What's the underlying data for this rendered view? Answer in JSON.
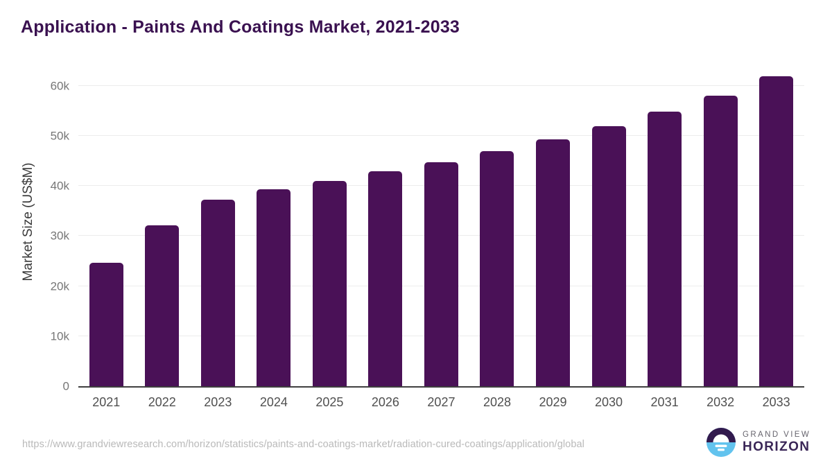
{
  "header": {
    "title": "Application - Paints And Coatings Market, 2021-2033"
  },
  "chart_data": {
    "type": "bar",
    "title": "Application - Paints And Coatings Market, 2021-2033",
    "xlabel": "",
    "ylabel": "Market Size (US$M)",
    "categories": [
      "2021",
      "2022",
      "2023",
      "2024",
      "2025",
      "2026",
      "2027",
      "2028",
      "2029",
      "2030",
      "2031",
      "2032",
      "2033"
    ],
    "values": [
      24600,
      32100,
      37200,
      39300,
      41000,
      42900,
      44800,
      47000,
      49300,
      51900,
      54800,
      58000,
      61900
    ],
    "unit": "US$M",
    "ylim": [
      0,
      64000
    ],
    "yticks": [
      {
        "value": 0,
        "label": "0"
      },
      {
        "value": 10000,
        "label": "10k"
      },
      {
        "value": 20000,
        "label": "20k"
      },
      {
        "value": 30000,
        "label": "30k"
      },
      {
        "value": 40000,
        "label": "40k"
      },
      {
        "value": 50000,
        "label": "50k"
      },
      {
        "value": 60000,
        "label": "60k"
      }
    ],
    "grid": "horizontal",
    "legend": false,
    "bar_color": "#4a1157",
    "title_color": "#3a1150"
  },
  "footer": {
    "url": "https://www.grandviewresearch.com/horizon/statistics/paints-and-coatings-market/radiation-cured-coatings/application/global",
    "logo": {
      "line1": "GRAND VIEW",
      "line2": "HORIZON",
      "icon_top_color": "#321a4e",
      "icon_bottom_color": "#62c3ee"
    }
  }
}
